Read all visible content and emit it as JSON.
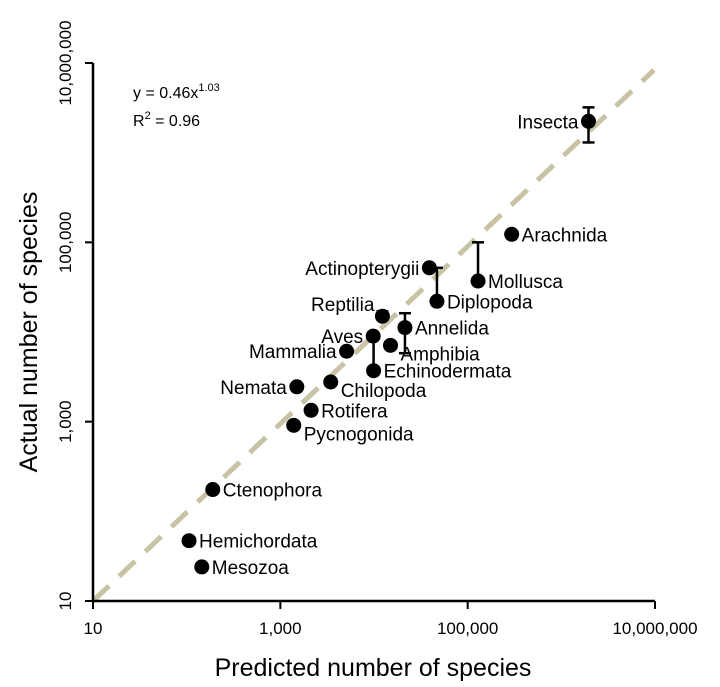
{
  "chart_data": {
    "type": "scatter",
    "xscale": "log",
    "yscale": "log",
    "xlabel": "Predicted number of species",
    "ylabel": "Actual number of species",
    "xlim": [
      10,
      10000000
    ],
    "ylim": [
      10,
      10000000
    ],
    "xticks": [
      10,
      1000,
      100000,
      10000000
    ],
    "xtick_labels": [
      "10",
      "1,000",
      "100,000",
      "10,000,000"
    ],
    "yticks": [
      10,
      1000,
      100000,
      10000000
    ],
    "ytick_labels": [
      "10",
      "1,000",
      "100,000",
      "10,000,000"
    ],
    "grid": false,
    "equation": {
      "base": "y = 0.46x",
      "exponent": "1.03"
    },
    "r2": {
      "base": "R",
      "sup": "2",
      "rest": " = 0.96"
    },
    "trendline": {
      "style": "dashed",
      "color": "#c8c3a5",
      "from": [
        10,
        10
      ],
      "to": [
        10000000,
        10000000
      ]
    },
    "colors": {
      "point": "#000000",
      "axis": "#000000",
      "trend": "#c8c3a5"
    },
    "points": [
      {
        "label": "Insecta",
        "x": 1950000,
        "y": 2240000,
        "err": [
          1300000,
          3200000
        ],
        "anchor": "left"
      },
      {
        "label": "Arachnida",
        "x": 295000,
        "y": 123000,
        "anchor": "right"
      },
      {
        "label": "Mollusca",
        "x": 129000,
        "y": 37000,
        "err": [
          37000,
          100000
        ],
        "anchor": "right"
      },
      {
        "label": "Actinopterygii",
        "x": 39000,
        "y": 52000,
        "anchor": "left"
      },
      {
        "label": "Diplopoda",
        "x": 47000,
        "y": 22000,
        "err": [
          22000,
          52000
        ],
        "anchor": "right"
      },
      {
        "label": "Reptilia",
        "x": 12300,
        "y": 15000,
        "err": [
          15000,
          17000
        ],
        "anchor": "left-up"
      },
      {
        "label": "Annelida",
        "x": 21400,
        "y": 11200,
        "err": [
          5800,
          16200
        ],
        "anchor": "right"
      },
      {
        "label": "Aves",
        "x": 9800,
        "y": 9000,
        "anchor": "left"
      },
      {
        "label": "Amphibia",
        "x": 15000,
        "y": 7100,
        "anchor": "right-down"
      },
      {
        "label": "Mammalia",
        "x": 5100,
        "y": 6100,
        "anchor": "left"
      },
      {
        "label": "Echinodermata",
        "x": 9900,
        "y": 3700,
        "err": [
          3700,
          9000
        ],
        "anchor": "right"
      },
      {
        "label": "Nemata",
        "x": 1500,
        "y": 2450,
        "anchor": "left"
      },
      {
        "label": "Chilopoda",
        "x": 3450,
        "y": 2770,
        "anchor": "right-down"
      },
      {
        "label": "Rotifera",
        "x": 2130,
        "y": 1340,
        "anchor": "right"
      },
      {
        "label": "Pycnogonida",
        "x": 1390,
        "y": 910,
        "anchor": "right-down"
      },
      {
        "label": "Ctenophora",
        "x": 190,
        "y": 175,
        "anchor": "right"
      },
      {
        "label": "Hemichordata",
        "x": 106,
        "y": 47,
        "anchor": "right"
      },
      {
        "label": "Mesozoa",
        "x": 145,
        "y": 24,
        "anchor": "right"
      }
    ]
  }
}
